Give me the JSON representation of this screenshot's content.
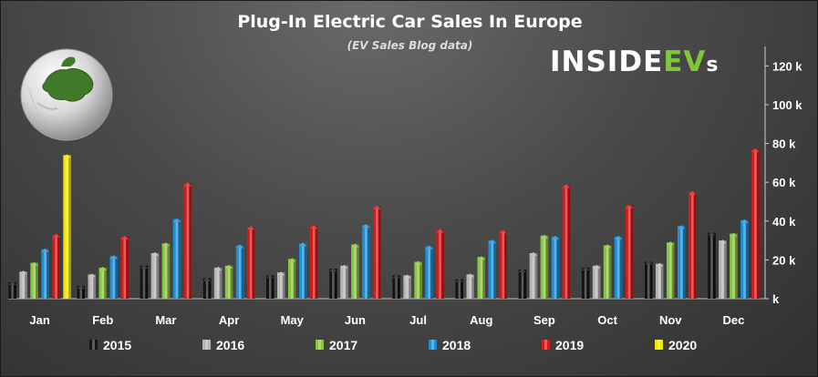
{
  "brand": {
    "logo_white": "INSIDE",
    "logo_green": "EV",
    "logo_suffix": "s"
  },
  "chart_data": {
    "type": "bar",
    "title": "Plug-In Electric Car Sales In Europe",
    "subtitle": "(EV Sales Blog data)",
    "xlabel": "",
    "ylabel": "",
    "ylim": [
      0,
      130000
    ],
    "y_ticks": [
      0,
      20000,
      40000,
      60000,
      80000,
      100000,
      120000
    ],
    "y_tick_labels": [
      "k",
      "20 k",
      "40 k",
      "60 k",
      "80 k",
      "100 k",
      "120 k"
    ],
    "y_axis_side": "right",
    "grid": false,
    "legend_position": "bottom",
    "categories": [
      "Jan",
      "Feb",
      "Mar",
      "Apr",
      "May",
      "Jun",
      "Jul",
      "Aug",
      "Sep",
      "Oct",
      "Nov",
      "Dec"
    ],
    "series": [
      {
        "name": "2015",
        "color": "#141414",
        "values": [
          8500,
          6500,
          17000,
          10500,
          12000,
          15500,
          12000,
          10000,
          15000,
          16000,
          19000,
          34000
        ]
      },
      {
        "name": "2016",
        "color": "#b4b4b4",
        "values": [
          14000,
          12500,
          23500,
          16000,
          13500,
          17000,
          12000,
          12500,
          23500,
          17000,
          18000,
          30000
        ]
      },
      {
        "name": "2017",
        "color": "#8ac440",
        "values": [
          18500,
          16000,
          28500,
          17000,
          20500,
          28000,
          19000,
          21500,
          32500,
          27500,
          29000,
          33500
        ]
      },
      {
        "name": "2018",
        "color": "#1e8fd6",
        "values": [
          25500,
          22000,
          41000,
          27500,
          28500,
          38000,
          27000,
          30000,
          32000,
          32000,
          37500,
          40500
        ]
      },
      {
        "name": "2019",
        "color": "#d41a1a",
        "values": [
          33000,
          32000,
          59500,
          37000,
          37500,
          47500,
          35500,
          35000,
          58500,
          48000,
          55000,
          77000
        ]
      },
      {
        "name": "2020",
        "color": "#f2e600",
        "values": [
          74000,
          null,
          null,
          null,
          null,
          null,
          null,
          null,
          null,
          null,
          null,
          null
        ]
      }
    ]
  }
}
